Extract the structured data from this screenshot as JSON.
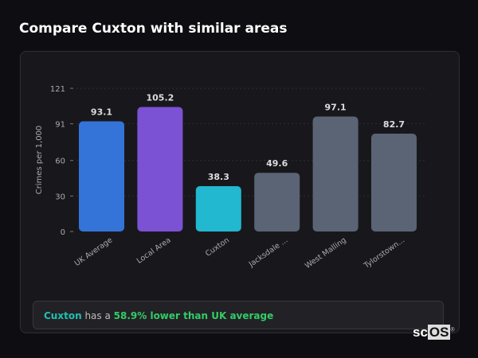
{
  "title": "Compare Cuxton with similar areas",
  "chart_data": {
    "type": "bar",
    "categories": [
      "UK Average",
      "Local Area",
      "Cuxton",
      "Jacksdale ...",
      "West Malling",
      "Tylorstown..."
    ],
    "values": [
      93.1,
      105.2,
      38.3,
      49.6,
      97.1,
      82.7
    ],
    "value_labels": [
      "93.1",
      "105.2",
      "38.3",
      "49.6",
      "97.1",
      "82.7"
    ],
    "colors": [
      "#3474d8",
      "#7b52d4",
      "#22b8cf",
      "#5a6475",
      "#5a6475",
      "#5a6475"
    ],
    "ylabel": "Crimes per 1,000",
    "xlabel": "",
    "ylim": [
      0,
      121
    ],
    "yticks": [
      0,
      30,
      60,
      91,
      121
    ],
    "grid": true
  },
  "insight": {
    "area": "Cuxton",
    "middle": " has a ",
    "comparison": "58.9% lower than UK average"
  },
  "logo": {
    "text_a": "sc",
    "text_b": "OS",
    "mark": "®"
  }
}
